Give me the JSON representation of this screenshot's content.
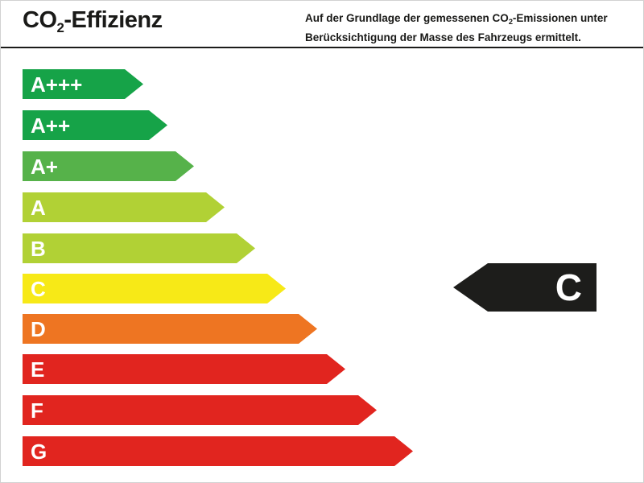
{
  "header": {
    "title": {
      "pre": "CO",
      "sub": "2",
      "post": "-Effizienz"
    },
    "description": {
      "line1_pre": "Auf der Grundlage der gemessenen CO",
      "line1_sub": "2",
      "line1_post": "-Emissionen unter",
      "line2": "Berücksichtigung der Masse des Fahrzeugs ermittelt."
    }
  },
  "chart_data": {
    "type": "bar",
    "title": "CO2-Effizienz",
    "orientation": "horizontal",
    "categories": [
      "A+++",
      "A++",
      "A+",
      "A",
      "B",
      "C",
      "D",
      "E",
      "F",
      "G"
    ],
    "values": [
      150,
      180,
      213,
      251,
      289,
      327,
      366,
      401,
      440,
      485
    ],
    "values_unit": "bar length in px (rank of efficiency class, shortest = best)",
    "colors": [
      "#16a348",
      "#16a348",
      "#56b24a",
      "#b1d135",
      "#b1d135",
      "#f7e917",
      "#ee7522",
      "#e1251f",
      "#e1251f",
      "#e1251f"
    ],
    "selected_rating": "C",
    "legend": "none",
    "axes": "none"
  },
  "rating": {
    "label": "C",
    "arrow_color": "#1d1d1b",
    "text_color": "#ffffff"
  }
}
